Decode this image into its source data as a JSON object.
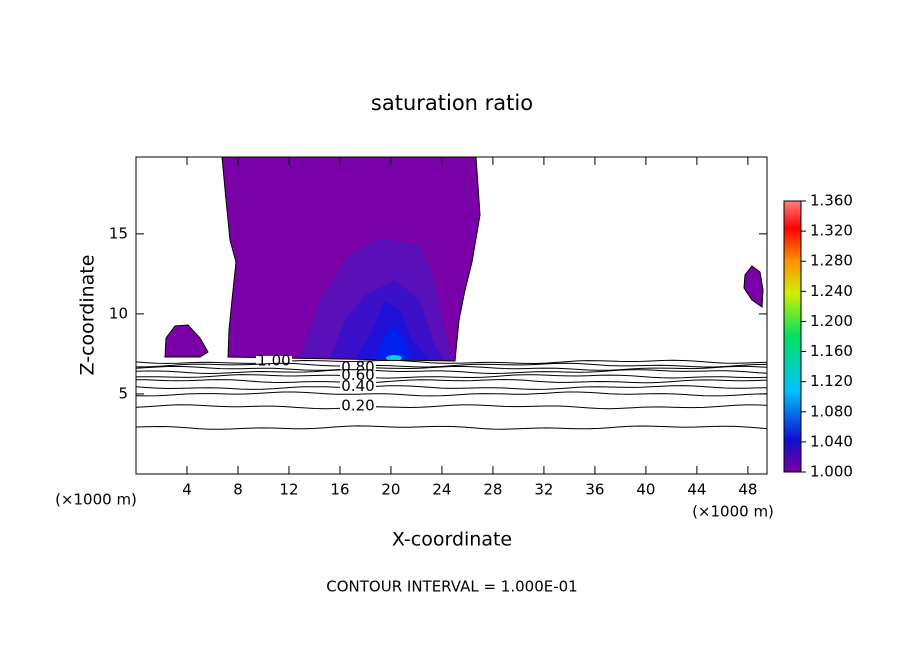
{
  "chart_data": {
    "type": "contour",
    "title": "saturation ratio",
    "x_label": "X-coordinate",
    "y_label": "Z-coordinate",
    "x_unit_label": "(×1000 m)",
    "y_unit_label": "(×1000 m)",
    "footer": "CONTOUR INTERVAL = 1.000E-01",
    "xlim": [
      0,
      49.5
    ],
    "xticks": [
      4,
      8,
      12,
      16,
      20,
      24,
      28,
      32,
      36,
      40,
      44,
      48
    ],
    "ylim": [
      0,
      19.8
    ],
    "yticks": [
      5,
      10,
      15
    ],
    "contours": [
      {
        "level": {
          "value": 1,
          "label": "1.00"
        },
        "z": 7.0
      },
      {
        "level": 0.9,
        "z": 6.8
      },
      {
        "level": {
          "value": 0.8,
          "label": "0.80"
        },
        "z": 6.6
      },
      {
        "level": 0.7,
        "z": 6.4
      },
      {
        "level": {
          "value": 0.6,
          "label": "0.60"
        },
        "z": 6.1
      },
      {
        "level": 0.5,
        "z": 5.8
      },
      {
        "level": {
          "value": 0.4,
          "label": "0.40"
        },
        "z": 5.4
      },
      {
        "level": 0.3,
        "z": 5.0
      },
      {
        "level": {
          "value": 0.2,
          "label": "0.20"
        },
        "z": 4.2
      },
      {
        "level": 0.1,
        "z": 2.9
      }
    ],
    "colorbar_lim": [
      1.0,
      1.36
    ],
    "colorbar_ticks": [
      {
        "value": 1.0,
        "label": "1.000"
      },
      {
        "value": 1.04,
        "label": "1.040"
      },
      {
        "value": 1.08,
        "label": "1.080"
      },
      {
        "value": 1.12,
        "label": "1.120"
      },
      {
        "value": 1.16,
        "label": "1.160"
      },
      {
        "value": 1.2,
        "label": "1.200"
      },
      {
        "value": 1.24,
        "label": "1.240"
      },
      {
        "value": 1.28,
        "label": "1.280"
      },
      {
        "value": 1.32,
        "label": "1.320"
      },
      {
        "value": 1.36,
        "label": "1.360"
      }
    ]
  }
}
